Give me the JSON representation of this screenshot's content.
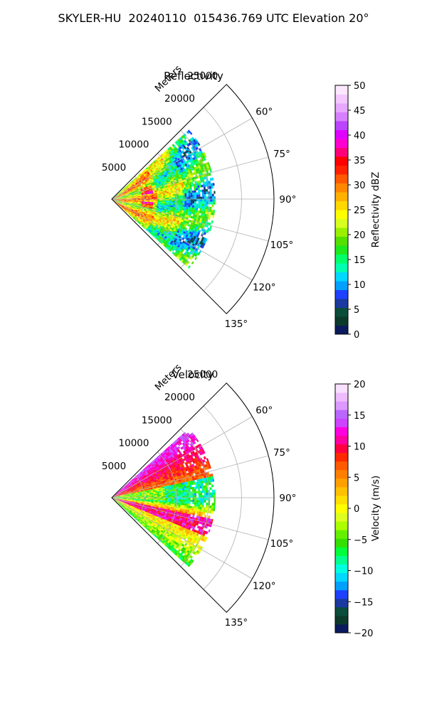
{
  "figure": {
    "title": "SKYLER-HU  20240110  015436.769 UTC Elevation 20°"
  },
  "chart_data": [
    {
      "type": "heatmap",
      "subtype": "polar-sector PPI",
      "title": "Reflectivity",
      "radial_label": "Meters",
      "radial_ticks": [
        5000,
        10000,
        15000,
        20000,
        25000
      ],
      "radial_tick_labels": [
        "5000",
        "10000",
        "15000",
        "20000",
        "25000"
      ],
      "rlim": [
        0,
        25000
      ],
      "azimuth_ticks": [
        60,
        75,
        90,
        105,
        120,
        135
      ],
      "azimuth_tick_labels": [
        "60°",
        "75°",
        "90°",
        "105°",
        "120°",
        "135°"
      ],
      "azimuth_range_deg": [
        45,
        135
      ],
      "data_extent_m": 16000,
      "grid": true,
      "colorbar": {
        "label": "Reflectivity dBZ",
        "range": [
          0,
          50
        ],
        "ticks": [
          0,
          5,
          10,
          15,
          20,
          25,
          30,
          35,
          40,
          45,
          50
        ],
        "tick_labels": [
          "0",
          "5",
          "10",
          "15",
          "20",
          "25",
          "30",
          "35",
          "40",
          "45",
          "50"
        ],
        "position": "right"
      },
      "field_summary": "mostly 15-30 dBZ, cores of ~35 dBZ near 5000-6000 m range"
    },
    {
      "type": "heatmap",
      "subtype": "polar-sector PPI",
      "title": "Velocity",
      "radial_label": "Meters",
      "radial_ticks": [
        5000,
        10000,
        15000,
        20000,
        25000
      ],
      "radial_tick_labels": [
        "5000",
        "10000",
        "15000",
        "20000",
        "25000"
      ],
      "rlim": [
        0,
        25000
      ],
      "azimuth_ticks": [
        60,
        75,
        90,
        105,
        120,
        135
      ],
      "azimuth_tick_labels": [
        "60°",
        "75°",
        "90°",
        "105°",
        "120°",
        "135°"
      ],
      "azimuth_range_deg": [
        45,
        135
      ],
      "data_extent_m": 16000,
      "grid": true,
      "colorbar": {
        "label": "Velocity (m/s)",
        "range": [
          -20,
          20
        ],
        "ticks": [
          -20,
          -15,
          -10,
          -5,
          0,
          5,
          10,
          15,
          20
        ],
        "tick_labels": [
          "−20",
          "−15",
          "−10",
          "−5",
          "0",
          "5",
          "10",
          "15",
          "20"
        ],
        "position": "right"
      },
      "field_summary": "positive (5-12 m/s) toward 60-75°, near 0 to -10 m/s around 85-95°, strong +10 to +15 m/s band near 100-110°"
    }
  ],
  "colors": {
    "reflectivity_scale": [
      "#0a1a5c",
      "#0b3a2a",
      "#0a4d3a",
      "#1a3aa0",
      "#1e40ff",
      "#00a0ff",
      "#00d8ff",
      "#00ffb0",
      "#00ff6a",
      "#1ee81e",
      "#55e000",
      "#9af000",
      "#d8ff20",
      "#ffff00",
      "#ffd800",
      "#ffb000",
      "#ff8800",
      "#ff5a00",
      "#ff2200",
      "#ff0000",
      "#ff0078",
      "#ff00d0",
      "#e000ff",
      "#bb44ff",
      "#d680ff",
      "#e8a8ff",
      "#f4c8ff",
      "#fbe8ff"
    ],
    "velocity_scale": [
      "#0a1a5c",
      "#0b3a2a",
      "#0a4d3a",
      "#1a3aa0",
      "#1e40ff",
      "#00a0ff",
      "#00d8ff",
      "#00ffe0",
      "#00ff90",
      "#00ff3a",
      "#33e000",
      "#66f000",
      "#aaff00",
      "#ddff20",
      "#ffff00",
      "#ffe000",
      "#ffc000",
      "#ffa000",
      "#ff8000",
      "#ff5a00",
      "#ff2a00",
      "#ff0040",
      "#ff00a0",
      "#ff00e0",
      "#cc44ff",
      "#bb66ff",
      "#dd99ff",
      "#eebbff",
      "#f8e0ff"
    ]
  }
}
